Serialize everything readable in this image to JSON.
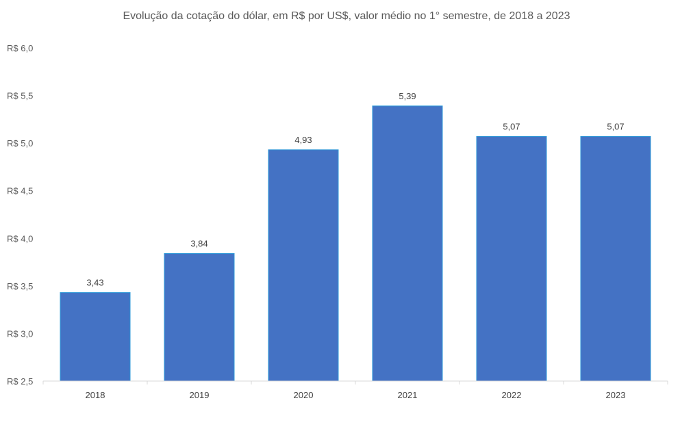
{
  "chart_data": {
    "type": "bar",
    "title": "Evolução da cotação do dólar, em R$ por US$, valor médio no 1° semestre, de 2018 a 2023",
    "categories": [
      "2018",
      "2019",
      "2020",
      "2021",
      "2022",
      "2023"
    ],
    "values": [
      3.43,
      3.84,
      4.93,
      5.39,
      5.07,
      5.07
    ],
    "data_labels": [
      "3,43",
      "3,84",
      "4,93",
      "5,39",
      "5,07",
      "5,07"
    ],
    "xlabel": "",
    "ylabel": "",
    "ylim": [
      2.5,
      6.0
    ],
    "yticks": [
      2.5,
      3.0,
      3.5,
      4.0,
      4.5,
      5.0,
      5.5,
      6.0
    ],
    "ytick_labels": [
      "R$ 2,5",
      "R$ 3,0",
      "R$ 3,5",
      "R$ 4,0",
      "R$ 4,5",
      "R$ 5,0",
      "R$ 5,5",
      "R$ 6,0"
    ],
    "grid": false,
    "legend": "none",
    "colors": {
      "bar_fill": "#4472C4",
      "bar_border": "#2E9AD8",
      "axis": "#D9D9D9"
    }
  }
}
